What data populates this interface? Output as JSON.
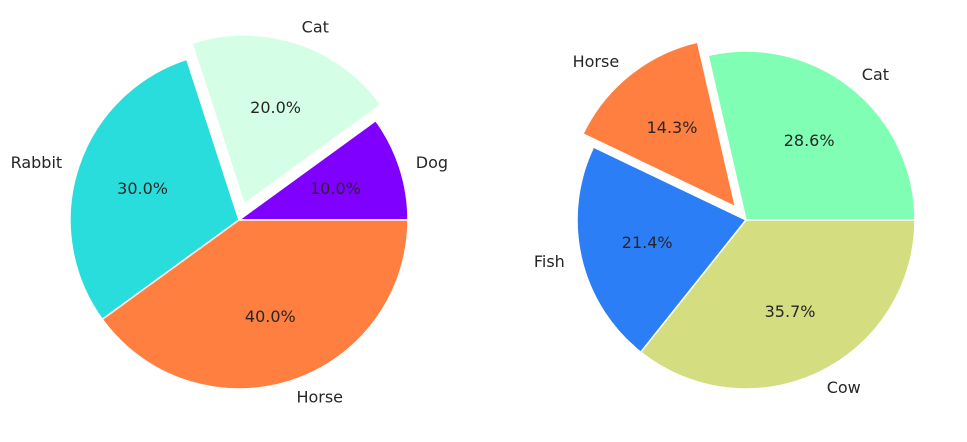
{
  "chart_data": [
    {
      "type": "pie",
      "start_angle_deg": 0,
      "direction": "counterclockwise",
      "slices": [
        {
          "label": "Dog",
          "value": 10,
          "pct_label": "10.0%",
          "color": "#8000ff",
          "explode": 0
        },
        {
          "label": "Cat",
          "value": 20,
          "pct_label": "20.0%",
          "color": "#d4ffe6",
          "explode": 0.1
        },
        {
          "label": "Rabbit",
          "value": 30,
          "pct_label": "30.0%",
          "color": "#2adddd",
          "explode": 0
        },
        {
          "label": "Horse",
          "value": 40,
          "pct_label": "40.0%",
          "color": "#ff7f41",
          "explode": 0
        }
      ]
    },
    {
      "type": "pie",
      "start_angle_deg": 0,
      "direction": "counterclockwise",
      "slices": [
        {
          "label": "Cat",
          "value": 28.6,
          "pct_label": "28.6%",
          "color": "#80ffb4",
          "explode": 0
        },
        {
          "label": "Horse",
          "value": 14.3,
          "pct_label": "14.3%",
          "color": "#ff7f41",
          "explode": 0.1
        },
        {
          "label": "Fish",
          "value": 21.4,
          "pct_label": "21.4%",
          "color": "#2c7ef7",
          "explode": 0
        },
        {
          "label": "Cow",
          "value": 35.7,
          "pct_label": "35.7%",
          "color": "#d4dd80",
          "explode": 0
        }
      ]
    }
  ]
}
